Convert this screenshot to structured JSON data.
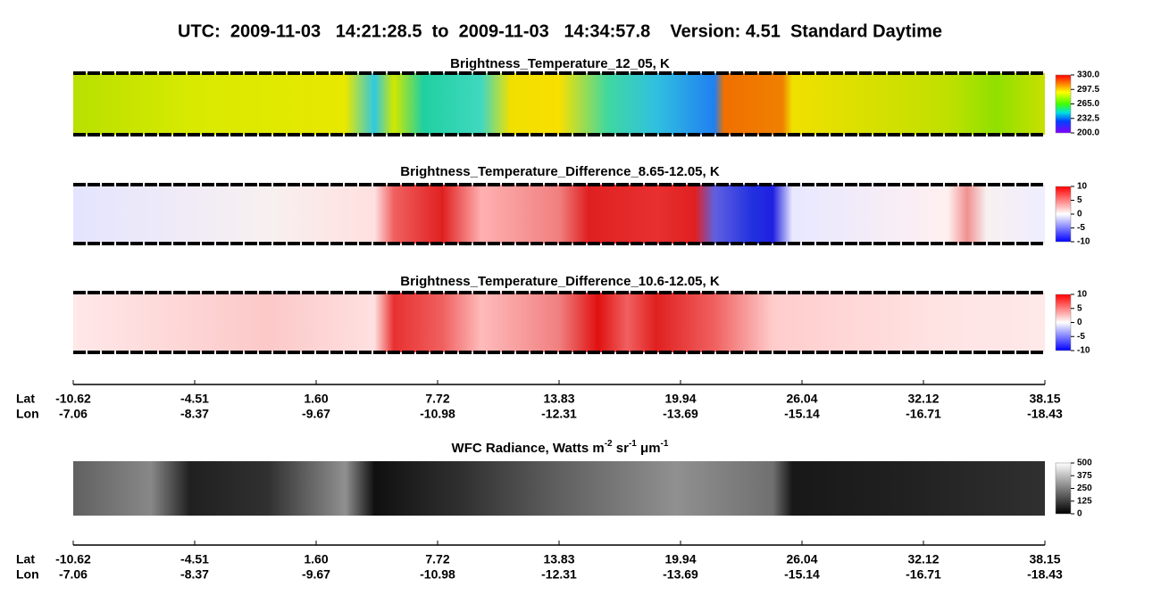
{
  "header": {
    "title": "UTC:  2009-11-03   14:21:28.5  to  2009-11-03   14:34:57.8    Version: 4.51  Standard Daytime"
  },
  "panels": [
    {
      "title": "Brightness_Temperature_12_05, K",
      "colorbar": [
        "330.0",
        "297.5",
        "265.0",
        "232.5",
        "200.0"
      ]
    },
    {
      "title": "Brightness_Temperature_Difference_8.65-12.05, K",
      "colorbar": [
        "10",
        "5",
        "0",
        "-5",
        "-10"
      ]
    },
    {
      "title": "Brightness_Temperature_Difference_10.6-12.05, K",
      "colorbar": [
        "10",
        "5",
        "0",
        "-5",
        "-10"
      ]
    }
  ],
  "wfc": {
    "title": [
      "WFC Radiance, Watts m",
      "-2",
      " sr",
      "-1",
      " μm",
      "-1"
    ],
    "colorbar": [
      "500",
      "375",
      "250",
      "125",
      "0"
    ]
  },
  "axes": [
    {
      "lat_label": "Lat",
      "lon_label": "Lon",
      "lat": [
        "-10.62",
        "-4.51",
        "1.60",
        "7.72",
        "13.83",
        "19.94",
        "26.04",
        "32.12",
        "38.15"
      ],
      "lon": [
        "-7.06",
        "-8.37",
        "-9.67",
        "-10.98",
        "-12.31",
        "-13.69",
        "-15.14",
        "-16.71",
        "-18.43"
      ]
    },
    {
      "lat_label": "Lat",
      "lon_label": "Lon",
      "lat": [
        "-10.62",
        "-4.51",
        "1.60",
        "7.72",
        "13.83",
        "19.94",
        "26.04",
        "32.12",
        "38.15"
      ],
      "lon": [
        "-7.06",
        "-8.37",
        "-9.67",
        "-10.98",
        "-12.31",
        "-13.69",
        "-15.14",
        "-16.71",
        "-18.43"
      ]
    }
  ]
}
